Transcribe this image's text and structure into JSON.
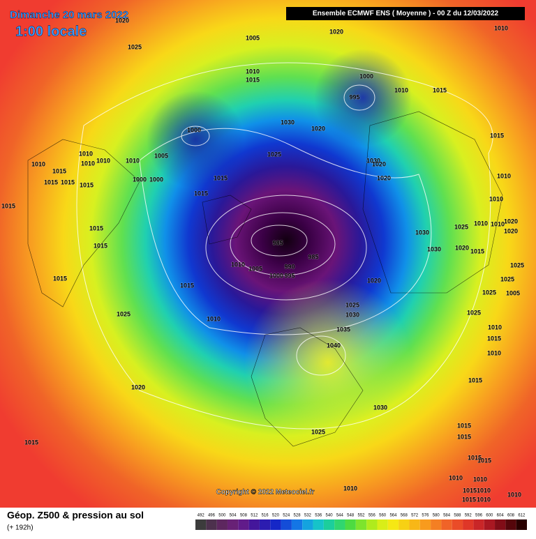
{
  "header": {
    "date": "Dimanche 20 mars 2022",
    "time": "1:00 locale",
    "run": "Ensemble ECMWF ENS  ( Moyenne )  -  00 Z du 12/03/2022"
  },
  "map": {
    "copyright": "Copyright © 2022 Meteociel.fr",
    "isobar_labels": [
      1020,
      1025,
      1005,
      1020,
      1010,
      1010,
      1015,
      1000,
      995,
      1010,
      1015,
      1000,
      1030,
      1020,
      1015,
      1005,
      1025,
      1010,
      1010,
      1010,
      1010,
      1010,
      1030,
      1020,
      1015,
      1015,
      1015,
      1015,
      1000,
      1000,
      1015,
      1020,
      1010,
      1015,
      1015,
      1010,
      1010,
      1020,
      1015,
      1030,
      1025,
      1010,
      1020,
      985,
      1015,
      1030,
      1020,
      1015,
      1010,
      1005,
      990,
      985,
      1000,
      995,
      1025,
      1015,
      1025,
      1015,
      1020,
      1025,
      1005,
      1025,
      1030,
      1025,
      1025,
      1010,
      1035,
      1010,
      1015,
      1040,
      1010,
      1015,
      1020,
      1030,
      1015,
      1015,
      1015,
      1025,
      1015,
      1015,
      1010,
      1010,
      1010,
      1015,
      1010,
      1015,
      1010,
      1010
    ]
  },
  "footer": {
    "title": "Géop. Z500 & pression au sol",
    "subtitle": "(+ 192h)",
    "colorbar_ticks": [
      492,
      496,
      500,
      504,
      508,
      512,
      516,
      520,
      524,
      528,
      532,
      536,
      540,
      544,
      548,
      552,
      556,
      560,
      564,
      568,
      572,
      576,
      580,
      584,
      588,
      592,
      596,
      600,
      604,
      608,
      612
    ]
  }
}
